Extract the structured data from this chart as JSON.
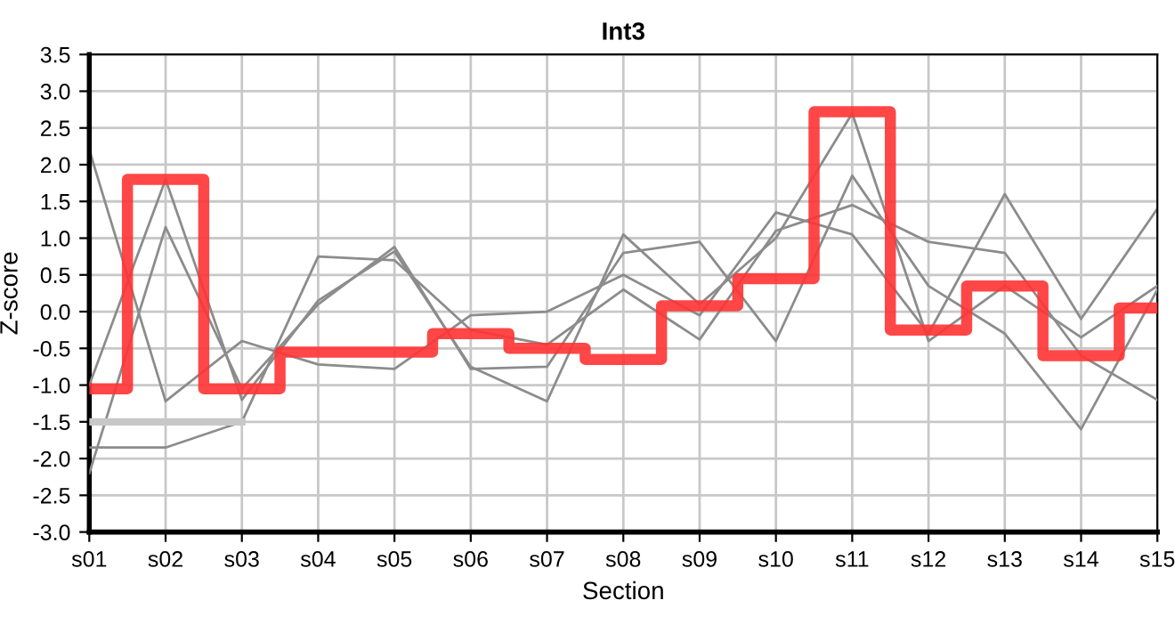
{
  "chart_data": {
    "type": "line",
    "title": "Int3",
    "xlabel": "Section",
    "ylabel": "Z-score",
    "categories": [
      "s01",
      "s02",
      "s03",
      "s04",
      "s05",
      "s06",
      "s07",
      "s08",
      "s09",
      "s10",
      "s11",
      "s12",
      "s13",
      "s14",
      "s15"
    ],
    "ylim": [
      -3.0,
      3.5
    ],
    "yticks": [
      {
        "value": -3.0,
        "label": "-3.0"
      },
      {
        "value": -2.5,
        "label": "-2.5"
      },
      {
        "value": -2.0,
        "label": "-2.0"
      },
      {
        "value": -1.5,
        "label": "-1.5"
      },
      {
        "value": -1.0,
        "label": "-1.0"
      },
      {
        "value": -0.5,
        "label": "-0.5"
      },
      {
        "value": 0.0,
        "label": "0.0"
      },
      {
        "value": 0.5,
        "label": "0.5"
      },
      {
        "value": 1.0,
        "label": "1.0"
      },
      {
        "value": 1.5,
        "label": "1.5"
      },
      {
        "value": 2.0,
        "label": "2.0"
      },
      {
        "value": 2.5,
        "label": "2.5"
      },
      {
        "value": 3.0,
        "label": "3.0"
      },
      {
        "value": 3.5,
        "label": "3.5"
      }
    ],
    "grid": true,
    "legend": false,
    "series": [
      {
        "color": "#8c8c8c",
        "values": [
          2.2,
          -1.22,
          -0.4,
          -0.72,
          -0.78,
          -0.05,
          0.0,
          0.5,
          -0.05,
          1.35,
          1.05,
          -0.3,
          1.6,
          -0.1,
          1.4
        ]
      },
      {
        "color": "#8c8c8c",
        "values": [
          -1.0,
          1.8,
          -1.2,
          0.15,
          0.82,
          -0.75,
          -1.22,
          1.05,
          0.1,
          1.0,
          2.7,
          -0.4,
          0.35,
          -0.35,
          0.35
        ]
      },
      {
        "color": "#8c8c8c",
        "values": [
          -2.2,
          1.15,
          -1.05,
          0.1,
          0.88,
          -0.78,
          -0.75,
          0.8,
          0.95,
          -0.4,
          1.85,
          0.35,
          -0.3,
          -1.6,
          0.3
        ]
      },
      {
        "color": "#8c8c8c",
        "values": [
          -1.85,
          -1.85,
          -1.5,
          0.75,
          0.7,
          -0.25,
          -0.45,
          0.3,
          -0.38,
          1.1,
          1.45,
          0.95,
          0.8,
          -0.6,
          -1.2
        ]
      },
      {
        "color": "#c8c8c8",
        "values": [
          -1.5,
          -1.5,
          -1.5,
          null,
          null,
          null,
          null,
          null,
          null,
          null,
          null,
          null,
          null,
          null,
          null
        ]
      },
      {
        "color": "#ff3333",
        "type": "step",
        "values": [
          -1.05,
          1.8,
          -1.05,
          -0.55,
          -0.55,
          -0.3,
          -0.5,
          -0.65,
          0.08,
          0.45,
          2.72,
          -0.25,
          0.35,
          -0.6,
          0.05
        ]
      }
    ]
  }
}
